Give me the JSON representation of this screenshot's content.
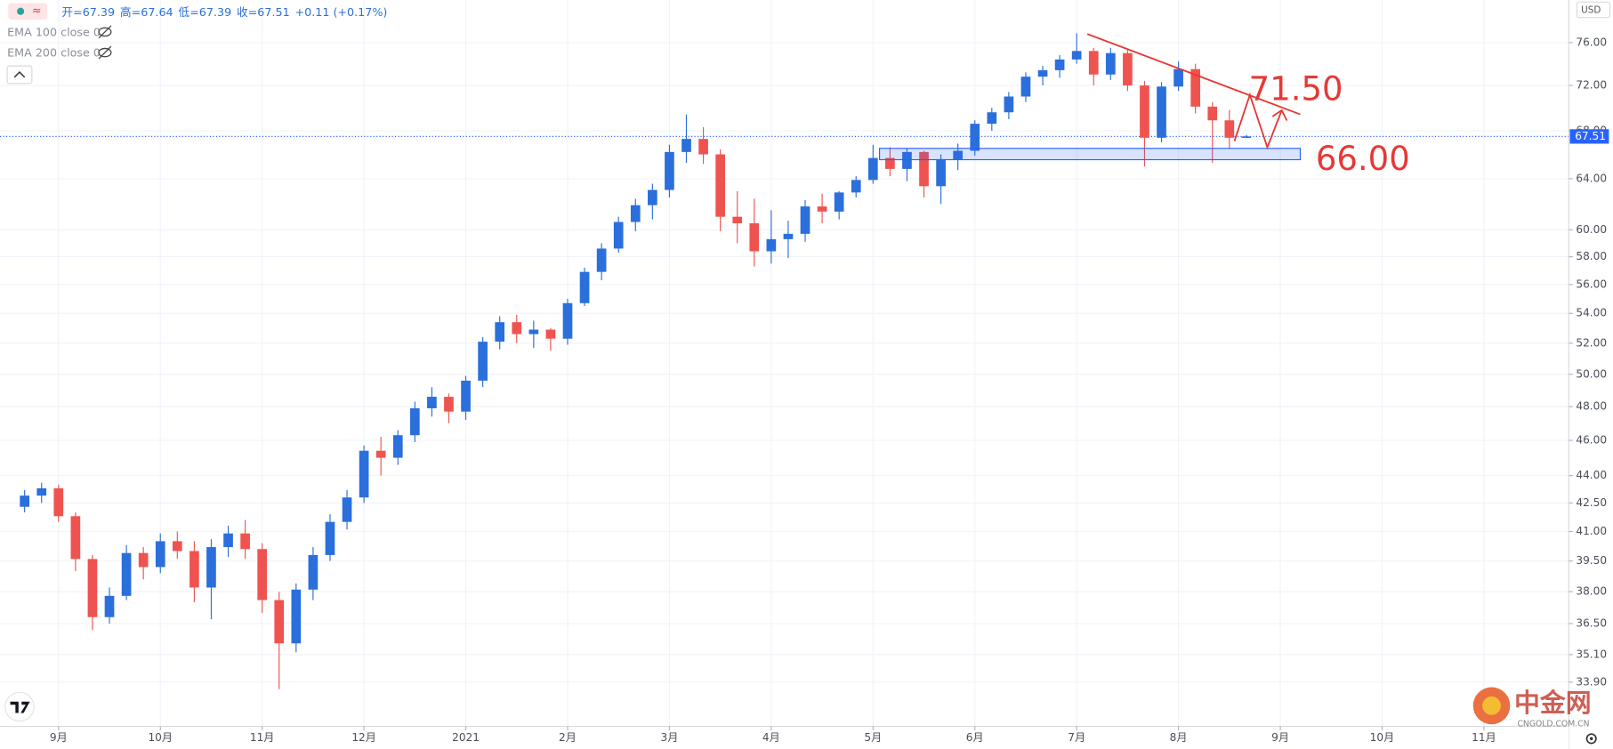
{
  "ohlc_text": [
    "开=67.39",
    "高=67.64",
    "低=67.39",
    "收=67.51",
    "+0.11 (+0.17%)"
  ],
  "indicators": [
    "EMA 100 close 0",
    "EMA 200 close 0"
  ],
  "currency": "USD",
  "watermark": {
    "brand": "中金网",
    "site": "CNGOLD.COM.CN"
  },
  "chart_data": {
    "type": "candlestick",
    "up_color": "#2a6fdb",
    "down_color": "#ef5350",
    "candles": [
      [
        42.3,
        43.2,
        42.0,
        42.9
      ],
      [
        42.9,
        43.6,
        42.5,
        43.3
      ],
      [
        43.3,
        43.5,
        41.5,
        41.8
      ],
      [
        41.8,
        42.0,
        39.0,
        39.6
      ],
      [
        39.6,
        39.8,
        36.2,
        36.8
      ],
      [
        36.8,
        38.2,
        36.5,
        37.8
      ],
      [
        37.8,
        40.3,
        37.6,
        39.9
      ],
      [
        39.9,
        40.2,
        38.6,
        39.2
      ],
      [
        39.2,
        40.9,
        38.9,
        40.5
      ],
      [
        40.5,
        41.0,
        39.6,
        40.0
      ],
      [
        40.0,
        40.5,
        37.5,
        38.2
      ],
      [
        38.2,
        40.6,
        36.7,
        40.2
      ],
      [
        40.2,
        41.3,
        39.7,
        40.9
      ],
      [
        40.9,
        41.6,
        39.6,
        40.1
      ],
      [
        40.1,
        40.4,
        37.0,
        37.6
      ],
      [
        37.6,
        38.0,
        33.6,
        35.6
      ],
      [
        35.6,
        38.4,
        35.2,
        38.1
      ],
      [
        38.1,
        40.2,
        37.6,
        39.8
      ],
      [
        39.8,
        41.9,
        39.5,
        41.5
      ],
      [
        41.5,
        43.2,
        41.1,
        42.8
      ],
      [
        42.8,
        45.7,
        42.5,
        45.4
      ],
      [
        45.4,
        46.2,
        44.0,
        45.0
      ],
      [
        45.0,
        46.6,
        44.6,
        46.3
      ],
      [
        46.3,
        48.3,
        45.9,
        47.9
      ],
      [
        47.9,
        49.2,
        47.4,
        48.6
      ],
      [
        48.6,
        48.8,
        47.0,
        47.7
      ],
      [
        47.7,
        49.9,
        47.2,
        49.6
      ],
      [
        49.6,
        52.4,
        49.2,
        52.1
      ],
      [
        52.1,
        53.8,
        51.6,
        53.4
      ],
      [
        53.4,
        53.9,
        52.0,
        52.6
      ],
      [
        52.6,
        53.5,
        51.7,
        52.9
      ],
      [
        52.9,
        53.0,
        51.5,
        52.3
      ],
      [
        52.3,
        55.0,
        51.9,
        54.7
      ],
      [
        54.7,
        57.2,
        54.5,
        56.9
      ],
      [
        56.9,
        59.0,
        56.3,
        58.6
      ],
      [
        58.6,
        61.0,
        58.3,
        60.6
      ],
      [
        60.6,
        62.4,
        59.9,
        61.9
      ],
      [
        61.9,
        63.6,
        60.8,
        63.1
      ],
      [
        63.1,
        66.8,
        62.5,
        66.2
      ],
      [
        66.2,
        69.4,
        65.3,
        67.3
      ],
      [
        67.3,
        68.3,
        65.2,
        66.0
      ],
      [
        66.0,
        66.4,
        59.9,
        61.0
      ],
      [
        61.0,
        63.0,
        59.0,
        60.5
      ],
      [
        60.5,
        62.4,
        57.3,
        58.4
      ],
      [
        58.4,
        61.5,
        57.5,
        59.3
      ],
      [
        59.3,
        60.7,
        57.9,
        59.7
      ],
      [
        59.7,
        62.3,
        59.1,
        61.8
      ],
      [
        61.8,
        62.8,
        60.5,
        61.4
      ],
      [
        61.4,
        63.0,
        60.8,
        62.9
      ],
      [
        62.9,
        64.2,
        62.5,
        63.9
      ],
      [
        63.9,
        66.8,
        63.6,
        65.7
      ],
      [
        65.7,
        66.6,
        64.2,
        64.8
      ],
      [
        64.8,
        66.5,
        63.8,
        66.2
      ],
      [
        66.2,
        66.3,
        62.5,
        63.4
      ],
      [
        63.4,
        66.0,
        62.0,
        65.6
      ],
      [
        65.6,
        66.9,
        64.7,
        66.3
      ],
      [
        66.3,
        68.9,
        65.9,
        68.6
      ],
      [
        68.6,
        70.0,
        68.0,
        69.6
      ],
      [
        69.6,
        71.4,
        69.0,
        71.0
      ],
      [
        71.0,
        73.2,
        70.5,
        72.8
      ],
      [
        72.8,
        73.8,
        72.0,
        73.4
      ],
      [
        73.4,
        74.8,
        72.7,
        74.4
      ],
      [
        74.4,
        76.9,
        74.0,
        75.2
      ],
      [
        75.2,
        75.5,
        72.0,
        73.0
      ],
      [
        73.0,
        75.5,
        72.5,
        75.0
      ],
      [
        75.0,
        75.3,
        71.5,
        72.0
      ],
      [
        72.0,
        72.4,
        65.0,
        67.4
      ],
      [
        67.4,
        72.3,
        67.0,
        71.9
      ],
      [
        71.9,
        74.2,
        71.5,
        73.5
      ],
      [
        73.5,
        74.0,
        69.5,
        70.1
      ],
      [
        70.1,
        70.5,
        65.3,
        68.9
      ],
      [
        68.9,
        69.8,
        66.5,
        67.4
      ],
      [
        67.39,
        67.64,
        67.39,
        67.51
      ]
    ],
    "xlim": [
      -1.45,
      91
    ],
    "xticks": [
      {
        "value": 2,
        "label": "9月"
      },
      {
        "value": 8,
        "label": "10月"
      },
      {
        "value": 14,
        "label": "11月"
      },
      {
        "value": 20,
        "label": "12月"
      },
      {
        "value": 26,
        "label": "2021"
      },
      {
        "value": 32,
        "label": "2月"
      },
      {
        "value": 38,
        "label": "3月"
      },
      {
        "value": 44,
        "label": "4月"
      },
      {
        "value": 50,
        "label": "5月"
      },
      {
        "value": 56,
        "label": "6月"
      },
      {
        "value": 62,
        "label": "7月"
      },
      {
        "value": 68,
        "label": "8月"
      },
      {
        "value": 74,
        "label": "9月"
      },
      {
        "value": 80,
        "label": "10月"
      },
      {
        "value": 86,
        "label": "11月"
      }
    ],
    "ylim": [
      32.06,
      80.2
    ],
    "log_scale": true,
    "yticks": [
      {
        "value": 33.9,
        "label": "33.90"
      },
      {
        "value": 35.1,
        "label": "35.10"
      },
      {
        "value": 36.5,
        "label": "36.50"
      },
      {
        "value": 38,
        "label": "38.00"
      },
      {
        "value": 39.5,
        "label": "39.50"
      },
      {
        "value": 41,
        "label": "41.00"
      },
      {
        "value": 42.5,
        "label": "42.50"
      },
      {
        "value": 44,
        "label": "44.00"
      },
      {
        "value": 46,
        "label": "46.00"
      },
      {
        "value": 48,
        "label": "48.00"
      },
      {
        "value": 50,
        "label": "50.00"
      },
      {
        "value": 52,
        "label": "52.00"
      },
      {
        "value": 54,
        "label": "54.00"
      },
      {
        "value": 56,
        "label": "56.00"
      },
      {
        "value": 58,
        "label": "58.00"
      },
      {
        "value": 60,
        "label": "60.00"
      },
      {
        "value": 64,
        "label": "64.00"
      },
      {
        "value": 68,
        "label": "68.00"
      },
      {
        "value": 72,
        "label": "72.00"
      },
      {
        "value": 76,
        "label": "76.00"
      }
    ],
    "grid": true,
    "last_price": 67.51,
    "annotations": [
      "71.50",
      "66.00"
    ]
  }
}
